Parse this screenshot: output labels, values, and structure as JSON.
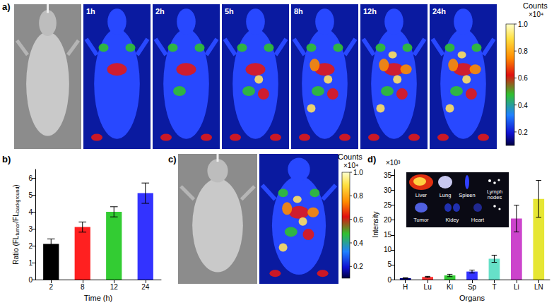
{
  "figure": {
    "panel_a": {
      "label": "a)",
      "frames": [
        "1h",
        "2h",
        "5h",
        "8h",
        "12h",
        "24h"
      ],
      "colorbar": {
        "title": "Counts",
        "unit": "×10⁴",
        "range": [
          0.1,
          1.0
        ],
        "ticks": [
          {
            "value": 1.0,
            "label": "1.0"
          },
          0.8,
          0.6,
          0.4,
          0.2
        ]
      }
    },
    "panel_c": {
      "label": "c)",
      "colorbar": {
        "title": "Counts",
        "unit": "×10⁴",
        "range": [
          0.1,
          1.0
        ],
        "ticks": [
          {
            "value": 1.0,
            "label": "1.0"
          },
          0.8,
          0.6,
          0.4,
          0.2
        ]
      }
    },
    "panel_d_inset": {
      "labels": [
        "Liver",
        "Lung",
        "Spleen",
        "Lymph\nnodes",
        "Tumor",
        "Kidey",
        "Heart"
      ]
    }
  },
  "chart_data": [
    {
      "type": "bar",
      "title": "b)",
      "xlabel": "Time (h)",
      "ylabel": "Ratio (FLtumor/FLbackground)",
      "categories": [
        "2",
        "8",
        "12",
        "24"
      ],
      "values": [
        2.1,
        3.1,
        4.0,
        5.1
      ],
      "errors": [
        0.3,
        0.3,
        0.3,
        0.6
      ],
      "colors": [
        "#000000",
        "#ff2020",
        "#33cc33",
        "#3333ff"
      ],
      "ylim": [
        0,
        6.5
      ],
      "yticks": [
        0,
        1,
        2,
        3,
        4,
        5,
        6
      ],
      "grid": false
    },
    {
      "type": "bar",
      "title": "d)",
      "xlabel": "Organs",
      "ylabel": "Intensity",
      "yunit": "×10³",
      "categories": [
        "H",
        "Lu",
        "Ki",
        "Sp",
        "T",
        "Li",
        "LN"
      ],
      "values": [
        0.5,
        0.9,
        1.4,
        2.7,
        7.0,
        20.5,
        27.1
      ],
      "errors": [
        0.1,
        0.2,
        0.4,
        0.5,
        1.2,
        4.5,
        6.2
      ],
      "colors": [
        "#00008b",
        "#ff3333",
        "#33cc33",
        "#3333ff",
        "#66e0c8",
        "#cc44cc",
        "#e6e633"
      ],
      "ylim": [
        0,
        37
      ],
      "yticks": [
        0,
        5,
        10,
        15,
        20,
        25,
        30,
        35
      ],
      "grid": false
    }
  ]
}
